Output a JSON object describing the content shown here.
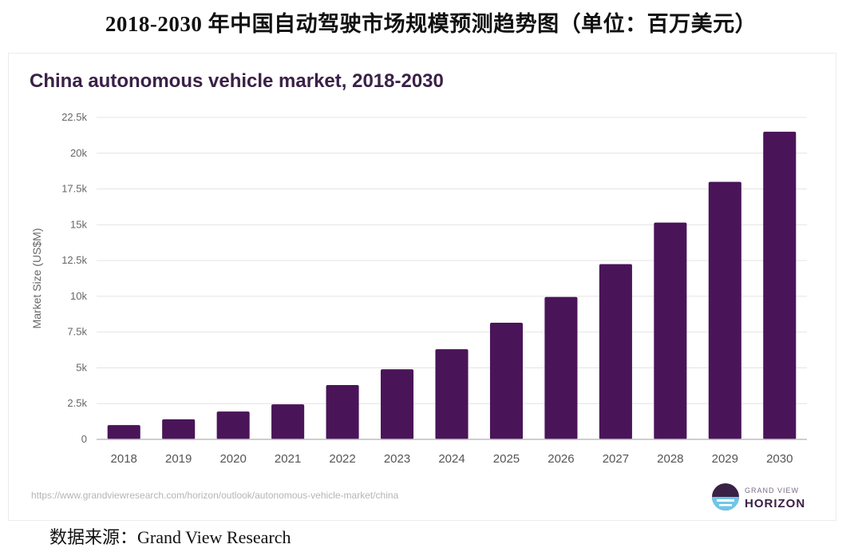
{
  "page_title": "2018-2030 年中国自动驾驶市场规模预测趋势图（单位：百万美元）",
  "source_line": "数据来源：Grand View Research",
  "footer": {
    "url": "https://www.grandviewresearch.com/horizon/outlook/autonomous-vehicle-market/china",
    "brand_top": "GRAND VIEW",
    "brand_bottom": "HORIZON"
  },
  "colors": {
    "bar": "#4a1459",
    "grid": "#e4e4e4",
    "title": "#3a2146"
  },
  "chart_data": {
    "type": "bar",
    "title": "China autonomous vehicle market, 2018-2030",
    "xlabel": "",
    "ylabel": "Market Size (US$M)",
    "categories": [
      "2018",
      "2019",
      "2020",
      "2021",
      "2022",
      "2023",
      "2024",
      "2025",
      "2026",
      "2027",
      "2028",
      "2029",
      "2030"
    ],
    "values": [
      1000,
      1400,
      1950,
      2450,
      3800,
      4900,
      6300,
      8150,
      9950,
      12250,
      15150,
      18000,
      21500
    ],
    "ylim": [
      0,
      22500
    ],
    "yticks": [
      0,
      2500,
      5000,
      7500,
      10000,
      12500,
      15000,
      17500,
      20000,
      22500
    ],
    "ytick_labels": [
      "0",
      "2.5k",
      "5k",
      "7.5k",
      "10k",
      "12.5k",
      "15k",
      "17.5k",
      "20k",
      "22.5k"
    ],
    "grid": true
  }
}
